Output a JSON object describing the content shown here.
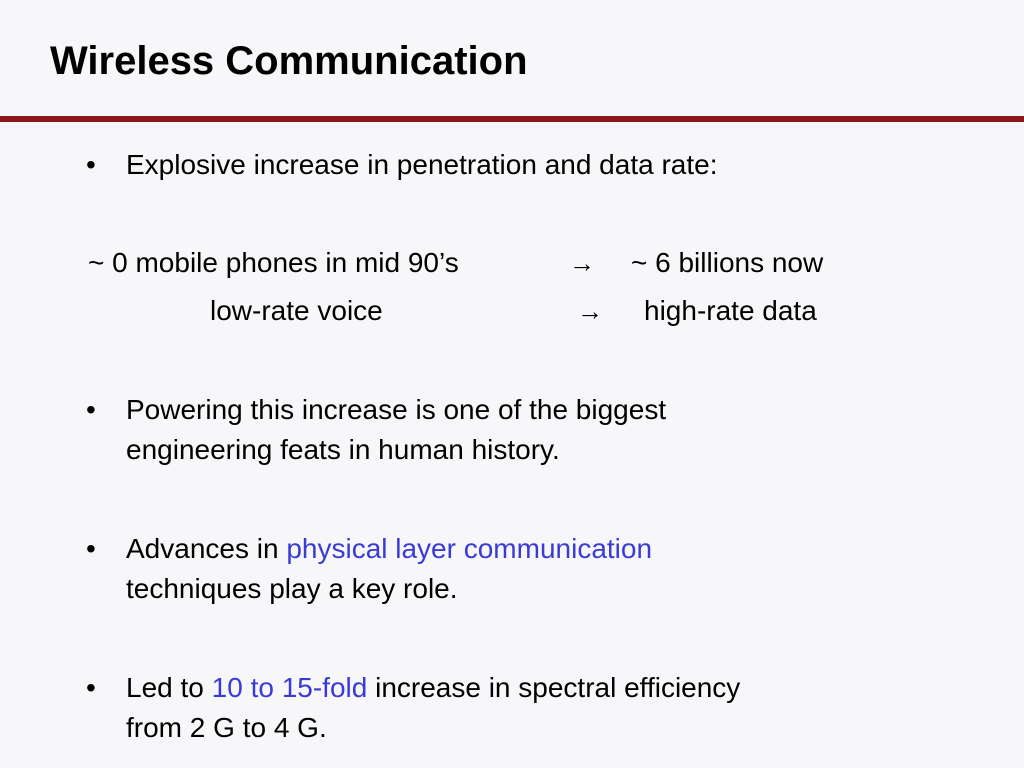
{
  "slide": {
    "title": "Wireless Communication",
    "accent_color": "#8a1a1a",
    "highlight_color": "#3a3ad6",
    "bullet_symbol": "•",
    "arrow_symbol": "→",
    "bullet1": {
      "text": "Explosive increase in penetration and data rate:"
    },
    "comparison": [
      {
        "from": "~ 0 mobile phones in mid 90’s",
        "to": "~ 6 billions now"
      },
      {
        "from": "low-rate voice",
        "to": "high-rate data"
      }
    ],
    "bullet2": {
      "line1": "Powering this increase is one of the biggest",
      "line2": "engineering feats in human history."
    },
    "bullet3": {
      "prefix": "Advances in ",
      "highlight": "physical layer communication",
      "line2": "techniques play a key role."
    },
    "bullet4": {
      "prefix": "Led  to ",
      "highlight": "10 to 15-fold",
      "suffix": " increase in spectral efficiency",
      "line2": "from 2 G to 4 G."
    }
  }
}
